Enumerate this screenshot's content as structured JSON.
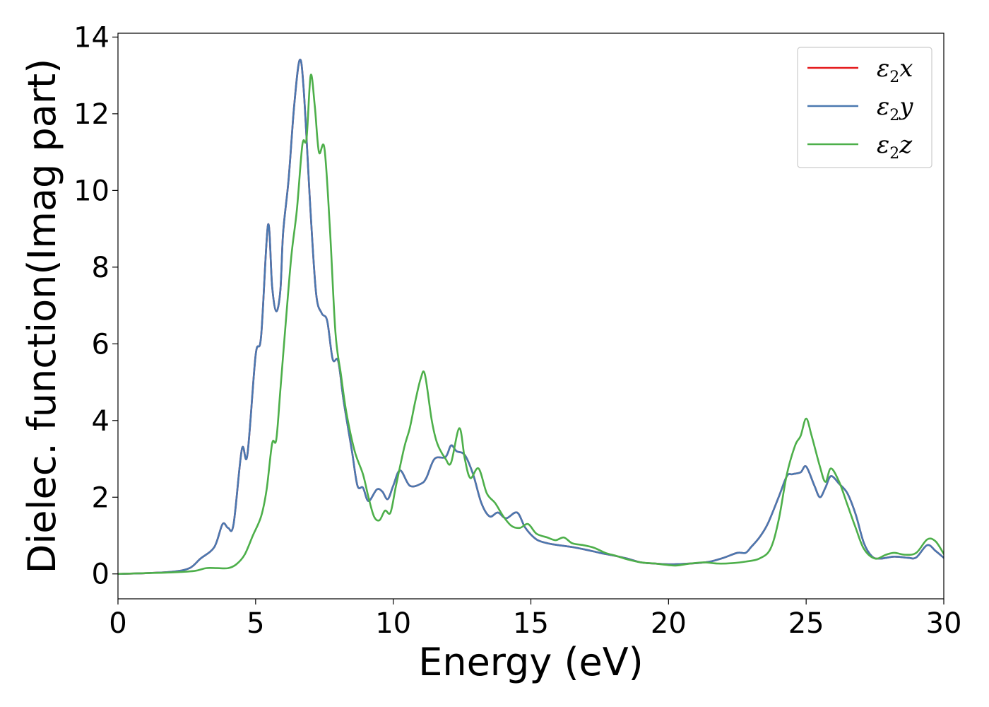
{
  "chart_data": {
    "type": "line",
    "xlabel": "Energy (eV)",
    "ylabel": "Dielec. function(Imag part)",
    "xlim": [
      0,
      30
    ],
    "ylim": [
      -0.65,
      14.1
    ],
    "xticks": [
      0,
      5,
      10,
      15,
      20,
      25,
      30
    ],
    "yticks": [
      0,
      2,
      4,
      6,
      8,
      10,
      12,
      14
    ],
    "grid": false,
    "legend_position": "top-right",
    "series": [
      {
        "name": "ε₂x",
        "legend": {
          "base": "ε",
          "sub": "2",
          "var": "x"
        },
        "color": "#e41a1c",
        "points": [
          [
            0,
            0
          ],
          [
            1,
            0.02
          ],
          [
            2,
            0.06
          ],
          [
            2.6,
            0.15
          ],
          [
            3,
            0.4
          ],
          [
            3.5,
            0.7
          ],
          [
            3.8,
            1.3
          ],
          [
            4.0,
            1.2
          ],
          [
            4.2,
            1.3
          ],
          [
            4.5,
            3.25
          ],
          [
            4.7,
            3.1
          ],
          [
            5.0,
            5.7
          ],
          [
            5.2,
            6.2
          ],
          [
            5.45,
            9.1
          ],
          [
            5.6,
            7.5
          ],
          [
            5.75,
            6.85
          ],
          [
            5.9,
            7.4
          ],
          [
            6.0,
            8.9
          ],
          [
            6.2,
            10.3
          ],
          [
            6.4,
            12.2
          ],
          [
            6.6,
            13.4
          ],
          [
            6.75,
            12.6
          ],
          [
            7.0,
            9.4
          ],
          [
            7.2,
            7.3
          ],
          [
            7.4,
            6.8
          ],
          [
            7.6,
            6.6
          ],
          [
            7.8,
            5.6
          ],
          [
            8.0,
            5.55
          ],
          [
            8.2,
            4.5
          ],
          [
            8.5,
            3.2
          ],
          [
            8.7,
            2.3
          ],
          [
            8.9,
            2.25
          ],
          [
            9.1,
            1.9
          ],
          [
            9.4,
            2.2
          ],
          [
            9.6,
            2.15
          ],
          [
            9.8,
            1.95
          ],
          [
            10.0,
            2.3
          ],
          [
            10.25,
            2.7
          ],
          [
            10.6,
            2.3
          ],
          [
            11.0,
            2.35
          ],
          [
            11.2,
            2.5
          ],
          [
            11.5,
            3.0
          ],
          [
            11.9,
            3.05
          ],
          [
            12.1,
            3.35
          ],
          [
            12.3,
            3.2
          ],
          [
            12.6,
            3.1
          ],
          [
            12.9,
            2.6
          ],
          [
            13.2,
            1.85
          ],
          [
            13.5,
            1.5
          ],
          [
            13.8,
            1.6
          ],
          [
            14.1,
            1.45
          ],
          [
            14.5,
            1.6
          ],
          [
            14.8,
            1.2
          ],
          [
            15.2,
            0.9
          ],
          [
            15.6,
            0.8
          ],
          [
            16,
            0.75
          ],
          [
            16.5,
            0.7
          ],
          [
            17,
            0.63
          ],
          [
            17.5,
            0.55
          ],
          [
            18,
            0.48
          ],
          [
            18.5,
            0.4
          ],
          [
            19,
            0.3
          ],
          [
            19.5,
            0.27
          ],
          [
            20,
            0.25
          ],
          [
            20.5,
            0.26
          ],
          [
            21,
            0.28
          ],
          [
            21.5,
            0.32
          ],
          [
            22,
            0.42
          ],
          [
            22.5,
            0.55
          ],
          [
            22.8,
            0.55
          ],
          [
            23.0,
            0.7
          ],
          [
            23.3,
            0.95
          ],
          [
            23.6,
            1.3
          ],
          [
            24.0,
            2.0
          ],
          [
            24.3,
            2.55
          ],
          [
            24.5,
            2.6
          ],
          [
            24.8,
            2.65
          ],
          [
            25.0,
            2.8
          ],
          [
            25.3,
            2.3
          ],
          [
            25.5,
            2.0
          ],
          [
            25.7,
            2.25
          ],
          [
            25.9,
            2.55
          ],
          [
            26.2,
            2.35
          ],
          [
            26.5,
            2.1
          ],
          [
            26.8,
            1.55
          ],
          [
            27.1,
            0.8
          ],
          [
            27.4,
            0.45
          ],
          [
            27.7,
            0.4
          ],
          [
            28.2,
            0.45
          ],
          [
            28.7,
            0.42
          ],
          [
            29.0,
            0.43
          ],
          [
            29.4,
            0.75
          ],
          [
            29.7,
            0.6
          ],
          [
            30,
            0.42
          ]
        ]
      },
      {
        "name": "ε₂y",
        "legend": {
          "base": "ε",
          "sub": "2",
          "var": "y"
        },
        "color": "#4a78b0",
        "points": [
          [
            0,
            0
          ],
          [
            1,
            0.02
          ],
          [
            2,
            0.06
          ],
          [
            2.6,
            0.15
          ],
          [
            3,
            0.4
          ],
          [
            3.5,
            0.7
          ],
          [
            3.8,
            1.3
          ],
          [
            4.0,
            1.2
          ],
          [
            4.2,
            1.3
          ],
          [
            4.5,
            3.25
          ],
          [
            4.7,
            3.1
          ],
          [
            5.0,
            5.7
          ],
          [
            5.2,
            6.2
          ],
          [
            5.45,
            9.1
          ],
          [
            5.6,
            7.5
          ],
          [
            5.75,
            6.85
          ],
          [
            5.9,
            7.4
          ],
          [
            6.0,
            8.9
          ],
          [
            6.2,
            10.3
          ],
          [
            6.4,
            12.2
          ],
          [
            6.6,
            13.4
          ],
          [
            6.75,
            12.6
          ],
          [
            7.0,
            9.4
          ],
          [
            7.2,
            7.3
          ],
          [
            7.4,
            6.8
          ],
          [
            7.6,
            6.6
          ],
          [
            7.8,
            5.6
          ],
          [
            8.0,
            5.55
          ],
          [
            8.2,
            4.5
          ],
          [
            8.5,
            3.2
          ],
          [
            8.7,
            2.3
          ],
          [
            8.9,
            2.25
          ],
          [
            9.1,
            1.9
          ],
          [
            9.4,
            2.2
          ],
          [
            9.6,
            2.15
          ],
          [
            9.8,
            1.95
          ],
          [
            10.0,
            2.3
          ],
          [
            10.25,
            2.7
          ],
          [
            10.6,
            2.3
          ],
          [
            11.0,
            2.35
          ],
          [
            11.2,
            2.5
          ],
          [
            11.5,
            3.0
          ],
          [
            11.9,
            3.05
          ],
          [
            12.1,
            3.35
          ],
          [
            12.3,
            3.2
          ],
          [
            12.6,
            3.1
          ],
          [
            12.9,
            2.6
          ],
          [
            13.2,
            1.85
          ],
          [
            13.5,
            1.5
          ],
          [
            13.8,
            1.6
          ],
          [
            14.1,
            1.45
          ],
          [
            14.5,
            1.6
          ],
          [
            14.8,
            1.2
          ],
          [
            15.2,
            0.9
          ],
          [
            15.6,
            0.8
          ],
          [
            16,
            0.75
          ],
          [
            16.5,
            0.7
          ],
          [
            17,
            0.63
          ],
          [
            17.5,
            0.55
          ],
          [
            18,
            0.48
          ],
          [
            18.5,
            0.4
          ],
          [
            19,
            0.3
          ],
          [
            19.5,
            0.27
          ],
          [
            20,
            0.25
          ],
          [
            20.5,
            0.26
          ],
          [
            21,
            0.28
          ],
          [
            21.5,
            0.32
          ],
          [
            22,
            0.42
          ],
          [
            22.5,
            0.55
          ],
          [
            22.8,
            0.55
          ],
          [
            23.0,
            0.7
          ],
          [
            23.3,
            0.95
          ],
          [
            23.6,
            1.3
          ],
          [
            24.0,
            2.0
          ],
          [
            24.3,
            2.55
          ],
          [
            24.5,
            2.6
          ],
          [
            24.8,
            2.65
          ],
          [
            25.0,
            2.8
          ],
          [
            25.3,
            2.3
          ],
          [
            25.5,
            2.0
          ],
          [
            25.7,
            2.25
          ],
          [
            25.9,
            2.55
          ],
          [
            26.2,
            2.35
          ],
          [
            26.5,
            2.1
          ],
          [
            26.8,
            1.55
          ],
          [
            27.1,
            0.8
          ],
          [
            27.4,
            0.45
          ],
          [
            27.7,
            0.4
          ],
          [
            28.2,
            0.45
          ],
          [
            28.7,
            0.42
          ],
          [
            29.0,
            0.43
          ],
          [
            29.4,
            0.75
          ],
          [
            29.7,
            0.6
          ],
          [
            30,
            0.42
          ]
        ]
      },
      {
        "name": "ε₂z",
        "legend": {
          "base": "ε",
          "sub": "2",
          "var": "z"
        },
        "color": "#4daf4a",
        "points": [
          [
            0,
            0
          ],
          [
            1,
            0.02
          ],
          [
            2,
            0.04
          ],
          [
            2.8,
            0.08
          ],
          [
            3.2,
            0.15
          ],
          [
            3.6,
            0.15
          ],
          [
            4.0,
            0.15
          ],
          [
            4.3,
            0.25
          ],
          [
            4.6,
            0.5
          ],
          [
            4.9,
            1.0
          ],
          [
            5.2,
            1.5
          ],
          [
            5.4,
            2.2
          ],
          [
            5.6,
            3.4
          ],
          [
            5.75,
            3.5
          ],
          [
            5.9,
            4.8
          ],
          [
            6.1,
            6.6
          ],
          [
            6.3,
            8.3
          ],
          [
            6.5,
            9.5
          ],
          [
            6.7,
            11.2
          ],
          [
            6.85,
            11.35
          ],
          [
            7.0,
            13.0
          ],
          [
            7.15,
            12.2
          ],
          [
            7.3,
            11.0
          ],
          [
            7.5,
            11.1
          ],
          [
            7.7,
            9.0
          ],
          [
            7.9,
            6.3
          ],
          [
            8.1,
            5.2
          ],
          [
            8.3,
            4.2
          ],
          [
            8.6,
            3.2
          ],
          [
            8.9,
            2.6
          ],
          [
            9.1,
            2.0
          ],
          [
            9.3,
            1.5
          ],
          [
            9.5,
            1.4
          ],
          [
            9.7,
            1.65
          ],
          [
            9.9,
            1.6
          ],
          [
            10.1,
            2.3
          ],
          [
            10.4,
            3.3
          ],
          [
            10.6,
            3.8
          ],
          [
            10.8,
            4.5
          ],
          [
            11.0,
            5.1
          ],
          [
            11.15,
            5.2
          ],
          [
            11.4,
            4.0
          ],
          [
            11.6,
            3.4
          ],
          [
            11.9,
            3.0
          ],
          [
            12.1,
            2.9
          ],
          [
            12.4,
            3.8
          ],
          [
            12.6,
            3.0
          ],
          [
            12.8,
            2.5
          ],
          [
            13.1,
            2.75
          ],
          [
            13.4,
            2.1
          ],
          [
            13.7,
            1.85
          ],
          [
            14.0,
            1.5
          ],
          [
            14.3,
            1.25
          ],
          [
            14.6,
            1.2
          ],
          [
            14.9,
            1.3
          ],
          [
            15.2,
            1.05
          ],
          [
            15.6,
            0.95
          ],
          [
            15.9,
            0.88
          ],
          [
            16.2,
            0.95
          ],
          [
            16.5,
            0.8
          ],
          [
            16.9,
            0.75
          ],
          [
            17.3,
            0.68
          ],
          [
            17.7,
            0.55
          ],
          [
            18.1,
            0.47
          ],
          [
            18.5,
            0.38
          ],
          [
            19,
            0.3
          ],
          [
            19.5,
            0.27
          ],
          [
            20,
            0.23
          ],
          [
            20.3,
            0.22
          ],
          [
            20.8,
            0.27
          ],
          [
            21.3,
            0.3
          ],
          [
            21.8,
            0.27
          ],
          [
            22.3,
            0.28
          ],
          [
            22.8,
            0.32
          ],
          [
            23.3,
            0.4
          ],
          [
            23.7,
            0.65
          ],
          [
            24.0,
            1.4
          ],
          [
            24.3,
            2.6
          ],
          [
            24.6,
            3.35
          ],
          [
            24.8,
            3.6
          ],
          [
            25.0,
            4.05
          ],
          [
            25.2,
            3.6
          ],
          [
            25.5,
            2.8
          ],
          [
            25.7,
            2.4
          ],
          [
            25.9,
            2.75
          ],
          [
            26.2,
            2.4
          ],
          [
            26.5,
            1.8
          ],
          [
            26.8,
            1.2
          ],
          [
            27.1,
            0.65
          ],
          [
            27.5,
            0.4
          ],
          [
            27.9,
            0.5
          ],
          [
            28.2,
            0.55
          ],
          [
            28.6,
            0.5
          ],
          [
            29.0,
            0.55
          ],
          [
            29.4,
            0.9
          ],
          [
            29.7,
            0.85
          ],
          [
            30,
            0.52
          ]
        ]
      }
    ]
  }
}
